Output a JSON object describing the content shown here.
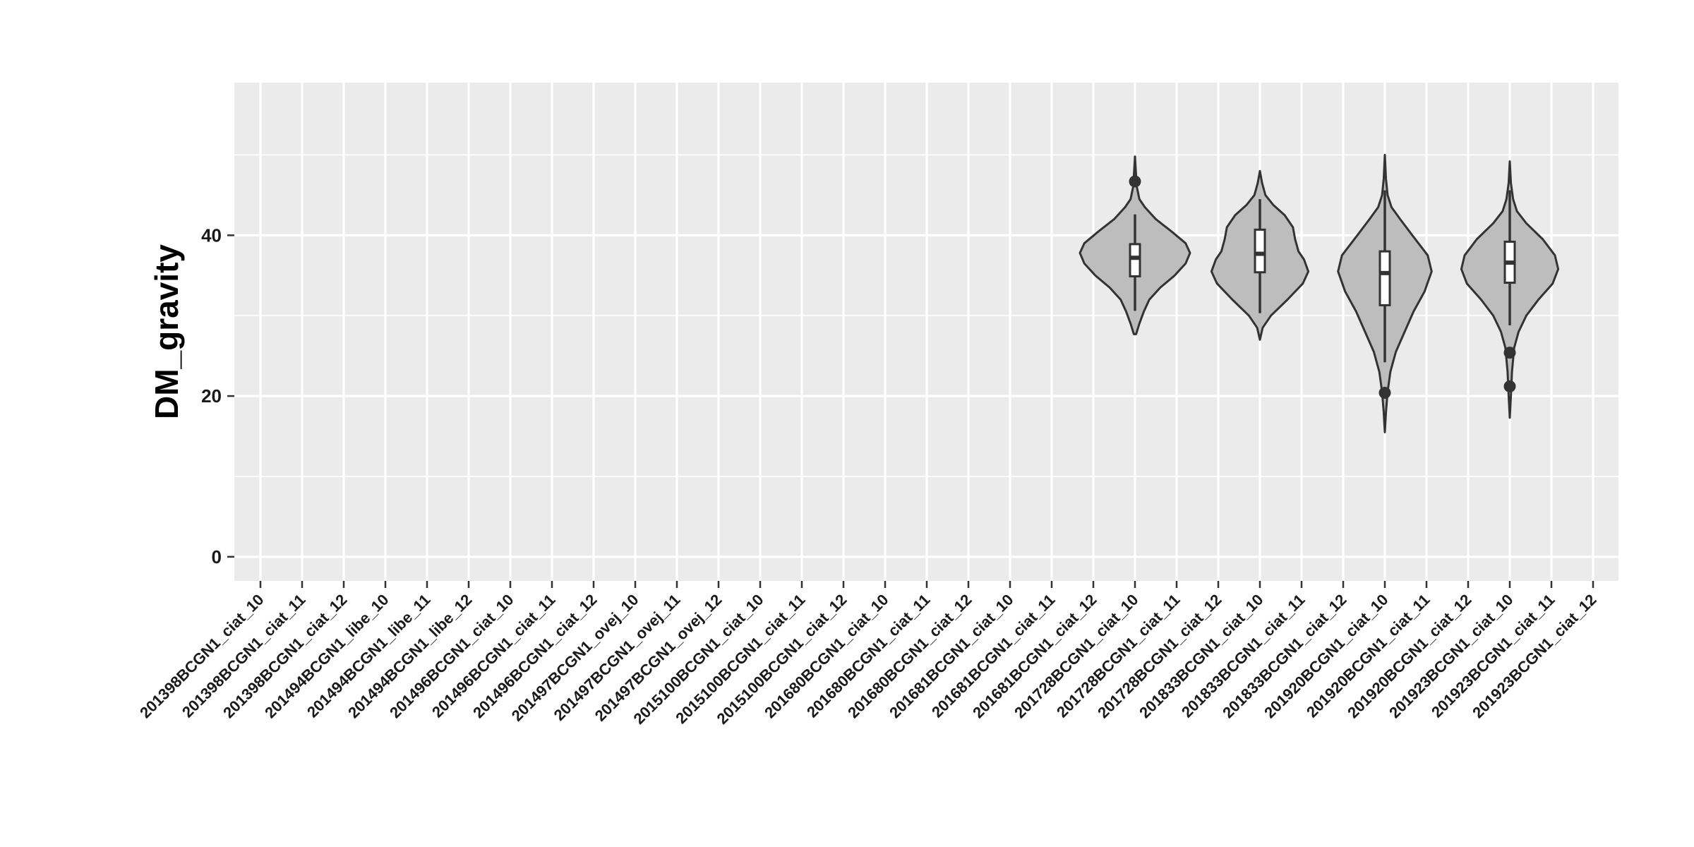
{
  "chart_data": {
    "type": "violin",
    "title": "",
    "xlabel": "",
    "ylabel": "DM_gravity",
    "ylim": [
      -3,
      59
    ],
    "y_ticks": [
      0,
      20,
      40
    ],
    "grid": true,
    "legend": "none",
    "colors": {
      "panel": "#ebebeb",
      "grid": "#ffffff",
      "violin_fill": "#bdbdbd",
      "violin_stroke": "#333333",
      "box_fill": "#ffffff",
      "outlier": "#333333"
    },
    "categories": [
      "201398BCGN1_ciat_10",
      "201398BCGN1_ciat_11",
      "201398BCGN1_ciat_12",
      "201494BCGN1_libe_10",
      "201494BCGN1_libe_11",
      "201494BCGN1_libe_12",
      "201496BCGN1_ciat_10",
      "201496BCGN1_ciat_11",
      "201496BCGN1_ciat_12",
      "201497BCGN1_ovej_10",
      "201497BCGN1_ovej_11",
      "201497BCGN1_ovej_12",
      "2015100BCGN1_ciat_10",
      "2015100BCGN1_ciat_11",
      "2015100BCGN1_ciat_12",
      "201680BCGN1_ciat_10",
      "201680BCGN1_ciat_11",
      "201680BCGN1_ciat_12",
      "201681BCGN1_ciat_10",
      "201681BCGN1_ciat_11",
      "201681BCGN1_ciat_12",
      "201728BCGN1_ciat_10",
      "201728BCGN1_ciat_11",
      "201728BCGN1_ciat_12",
      "201833BCGN1_ciat_10",
      "201833BCGN1_ciat_11",
      "201833BCGN1_ciat_12",
      "201920BCGN1_ciat_10",
      "201920BCGN1_ciat_11",
      "201920BCGN1_ciat_12",
      "201923BCGN1_ciat_10",
      "201923BCGN1_ciat_11",
      "201923BCGN1_ciat_12"
    ],
    "violins": [
      {
        "category": "201728BCGN1_ciat_10",
        "ymin": 27.7,
        "ymax": 49.8,
        "q1": 34.9,
        "median": 37.2,
        "q3": 38.9,
        "whisker_low": 30.6,
        "whisker_high": 42.6,
        "outliers": [
          46.7
        ],
        "density": [
          [
            27.7,
            0.02
          ],
          [
            29,
            0.08
          ],
          [
            30.5,
            0.16
          ],
          [
            32,
            0.26
          ],
          [
            33.5,
            0.46
          ],
          [
            35,
            0.72
          ],
          [
            36.5,
            0.92
          ],
          [
            37.8,
            1.0
          ],
          [
            39,
            0.92
          ],
          [
            40.5,
            0.66
          ],
          [
            42,
            0.38
          ],
          [
            43.5,
            0.18
          ],
          [
            44.5,
            0.08
          ],
          [
            46,
            0.035
          ],
          [
            48,
            0.015
          ],
          [
            49.8,
            0.0
          ]
        ]
      },
      {
        "category": "201833BCGN1_ciat_10",
        "ymin": 27.0,
        "ymax": 48.0,
        "q1": 35.4,
        "median": 37.7,
        "q3": 40.7,
        "whisker_low": 30.3,
        "whisker_high": 44.5,
        "outliers": [],
        "density": [
          [
            27,
            0.0
          ],
          [
            28.5,
            0.05
          ],
          [
            30,
            0.2
          ],
          [
            32,
            0.5
          ],
          [
            34,
            0.78
          ],
          [
            35.5,
            0.88
          ],
          [
            37,
            0.8
          ],
          [
            38,
            0.7
          ],
          [
            39.5,
            0.64
          ],
          [
            41,
            0.6
          ],
          [
            42.5,
            0.45
          ],
          [
            43.8,
            0.24
          ],
          [
            45,
            0.1
          ],
          [
            46.5,
            0.04
          ],
          [
            48,
            0.0
          ]
        ]
      },
      {
        "category": "201920BCGN1_ciat_10",
        "ymin": 15.5,
        "ymax": 50.0,
        "q1": 31.3,
        "median": 35.3,
        "q3": 38.0,
        "whisker_low": 24.2,
        "whisker_high": 45.6,
        "outliers": [
          20.4
        ],
        "density": [
          [
            15.5,
            0.0
          ],
          [
            18,
            0.02
          ],
          [
            20.5,
            0.05
          ],
          [
            23,
            0.1
          ],
          [
            25.5,
            0.2
          ],
          [
            28,
            0.36
          ],
          [
            30.5,
            0.52
          ],
          [
            33,
            0.72
          ],
          [
            35.5,
            0.85
          ],
          [
            37.5,
            0.78
          ],
          [
            40,
            0.5
          ],
          [
            42,
            0.28
          ],
          [
            43.5,
            0.12
          ],
          [
            45,
            0.05
          ],
          [
            47,
            0.02
          ],
          [
            50,
            0.0
          ]
        ]
      },
      {
        "category": "201923BCGN1_ciat_10",
        "ymin": 17.3,
        "ymax": 49.2,
        "q1": 34.1,
        "median": 36.6,
        "q3": 39.2,
        "whisker_low": 28.8,
        "whisker_high": 45.6,
        "outliers": [
          25.4,
          21.2
        ],
        "density": [
          [
            17.3,
            0.0
          ],
          [
            20,
            0.02
          ],
          [
            23,
            0.04
          ],
          [
            26,
            0.08
          ],
          [
            28,
            0.16
          ],
          [
            30,
            0.3
          ],
          [
            32,
            0.52
          ],
          [
            34,
            0.78
          ],
          [
            35.8,
            0.88
          ],
          [
            37.5,
            0.82
          ],
          [
            39.5,
            0.6
          ],
          [
            41.5,
            0.3
          ],
          [
            43,
            0.13
          ],
          [
            44.5,
            0.06
          ],
          [
            46.5,
            0.02
          ],
          [
            49.2,
            0.0
          ]
        ]
      }
    ]
  }
}
